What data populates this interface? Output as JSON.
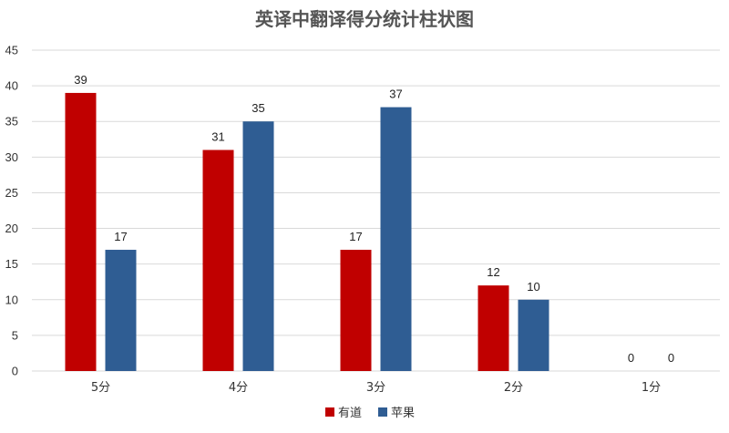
{
  "chart_data": {
    "type": "bar",
    "title": "英译中翻译得分统计柱状图",
    "categories": [
      "5分",
      "4分",
      "3分",
      "2分",
      "1分"
    ],
    "series": [
      {
        "name": "有道",
        "color": "#c00000",
        "values": [
          39,
          31,
          17,
          12,
          0
        ]
      },
      {
        "name": "苹果",
        "color": "#2f5d93",
        "values": [
          17,
          35,
          37,
          10,
          0
        ]
      }
    ],
    "yticks": [
      "0",
      "5",
      "10",
      "15",
      "20",
      "25",
      "30",
      "35",
      "40",
      "45"
    ],
    "ylim": [
      0,
      45
    ],
    "grid": true,
    "legend_position": "bottom",
    "data_labels": true
  }
}
